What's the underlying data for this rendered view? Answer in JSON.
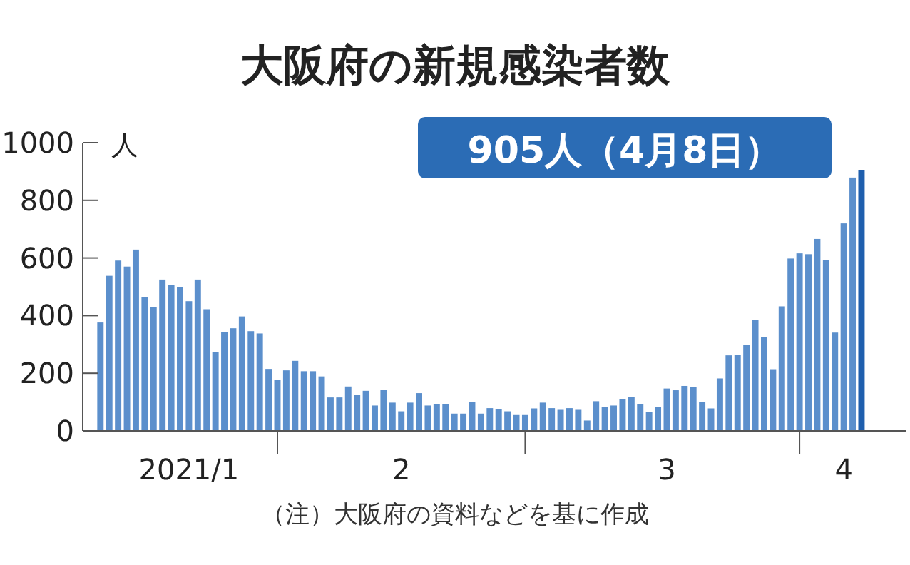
{
  "chart_data": {
    "type": "bar",
    "title": "大阪府の新規感染者数",
    "ylabel": "人",
    "annotations": [
      "905人（4月8日）",
      "（注）大阪府の資料などを基に作成"
    ],
    "x": [
      "2021-01-12",
      "2021-01-13",
      "2021-01-14",
      "2021-01-15",
      "2021-01-16",
      "2021-01-17",
      "2021-01-18",
      "2021-01-19",
      "2021-01-20",
      "2021-01-21",
      "2021-01-22",
      "2021-01-23",
      "2021-01-24",
      "2021-01-25",
      "2021-01-26",
      "2021-01-27",
      "2021-01-28",
      "2021-01-29",
      "2021-01-30",
      "2021-01-31",
      "2021-02-01",
      "2021-02-02",
      "2021-02-03",
      "2021-02-04",
      "2021-02-05",
      "2021-02-06",
      "2021-02-07",
      "2021-02-08",
      "2021-02-09",
      "2021-02-10",
      "2021-02-11",
      "2021-02-12",
      "2021-02-13",
      "2021-02-14",
      "2021-02-15",
      "2021-02-16",
      "2021-02-17",
      "2021-02-18",
      "2021-02-19",
      "2021-02-20",
      "2021-02-21",
      "2021-02-22",
      "2021-02-23",
      "2021-02-24",
      "2021-02-25",
      "2021-02-26",
      "2021-02-27",
      "2021-02-28",
      "2021-03-01",
      "2021-03-02",
      "2021-03-03",
      "2021-03-04",
      "2021-03-05",
      "2021-03-06",
      "2021-03-07",
      "2021-03-08",
      "2021-03-09",
      "2021-03-10",
      "2021-03-11",
      "2021-03-12",
      "2021-03-13",
      "2021-03-14",
      "2021-03-15",
      "2021-03-16",
      "2021-03-17",
      "2021-03-18",
      "2021-03-19",
      "2021-03-20",
      "2021-03-21",
      "2021-03-22",
      "2021-03-23",
      "2021-03-24",
      "2021-03-25",
      "2021-03-26",
      "2021-03-27",
      "2021-03-28",
      "2021-03-29",
      "2021-03-30",
      "2021-03-31",
      "2021-04-01",
      "2021-04-02",
      "2021-04-03",
      "2021-04-04",
      "2021-04-05",
      "2021-04-06",
      "2021-04-07",
      "2021-04-08"
    ],
    "values": [
      376,
      538,
      591,
      570,
      629,
      465,
      430,
      525,
      507,
      500,
      450,
      525,
      422,
      273,
      343,
      356,
      397,
      346,
      338,
      215,
      177,
      210,
      243,
      207,
      207,
      189,
      116,
      116,
      154,
      126,
      139,
      88,
      142,
      98,
      68,
      98,
      131,
      88,
      93,
      93,
      60,
      60,
      99,
      60,
      79,
      76,
      68,
      55,
      55,
      78,
      98,
      79,
      73,
      79,
      73,
      36,
      103,
      84,
      88,
      109,
      118,
      93,
      65,
      84,
      147,
      141,
      156,
      151,
      99,
      78,
      182,
      262,
      263,
      298,
      386,
      325,
      214,
      432,
      598,
      616,
      613,
      666,
      593,
      341,
      720,
      879,
      905
    ],
    "colors": [
      "#5b8fcc",
      "#5b8fcc",
      "#5b8fcc",
      "#5b8fcc",
      "#5b8fcc",
      "#5b8fcc",
      "#5b8fcc",
      "#5b8fcc",
      "#5b8fcc",
      "#5b8fcc",
      "#5b8fcc",
      "#5b8fcc",
      "#5b8fcc",
      "#5b8fcc",
      "#5b8fcc",
      "#5b8fcc",
      "#5b8fcc",
      "#5b8fcc",
      "#5b8fcc",
      "#5b8fcc",
      "#5b8fcc",
      "#5b8fcc",
      "#5b8fcc",
      "#5b8fcc",
      "#5b8fcc",
      "#5b8fcc",
      "#5b8fcc",
      "#5b8fcc",
      "#5b8fcc",
      "#5b8fcc",
      "#5b8fcc",
      "#5b8fcc",
      "#5b8fcc",
      "#5b8fcc",
      "#5b8fcc",
      "#5b8fcc",
      "#5b8fcc",
      "#5b8fcc",
      "#5b8fcc",
      "#5b8fcc",
      "#5b8fcc",
      "#5b8fcc",
      "#5b8fcc",
      "#5b8fcc",
      "#5b8fcc",
      "#5b8fcc",
      "#5b8fcc",
      "#5b8fcc",
      "#5b8fcc",
      "#5b8fcc",
      "#5b8fcc",
      "#5b8fcc",
      "#5b8fcc",
      "#5b8fcc",
      "#5b8fcc",
      "#5b8fcc",
      "#5b8fcc",
      "#5b8fcc",
      "#5b8fcc",
      "#5b8fcc",
      "#5b8fcc",
      "#5b8fcc",
      "#5b8fcc",
      "#5b8fcc",
      "#5b8fcc",
      "#5b8fcc",
      "#5b8fcc",
      "#5b8fcc",
      "#5b8fcc",
      "#5b8fcc",
      "#5b8fcc",
      "#5b8fcc",
      "#5b8fcc",
      "#5b8fcc",
      "#5b8fcc",
      "#5b8fcc",
      "#5b8fcc",
      "#5b8fcc",
      "#5b8fcc",
      "#5b8fcc",
      "#5b8fcc",
      "#5b8fcc",
      "#5b8fcc",
      "#5b8fcc",
      "#5b8fcc",
      "#5b8fcc",
      "#1f5fae"
    ],
    "xlim": [
      "2021-01-10",
      "2021-04-13"
    ],
    "xticks": [
      {
        "value": "2021-01-22",
        "label": "2021/1"
      },
      {
        "value": "2021-02-01",
        "label": null
      },
      {
        "value": "2021-02-15",
        "label": "2"
      },
      {
        "value": "2021-03-01",
        "label": null
      },
      {
        "value": "2021-03-17",
        "label": "3"
      },
      {
        "value": "2021-04-01",
        "label": null
      },
      {
        "value": "2021-04-06",
        "label": "4"
      }
    ],
    "ylim": [
      0,
      1000
    ],
    "yticks": [
      0,
      200,
      400,
      600,
      800,
      1000
    ]
  }
}
